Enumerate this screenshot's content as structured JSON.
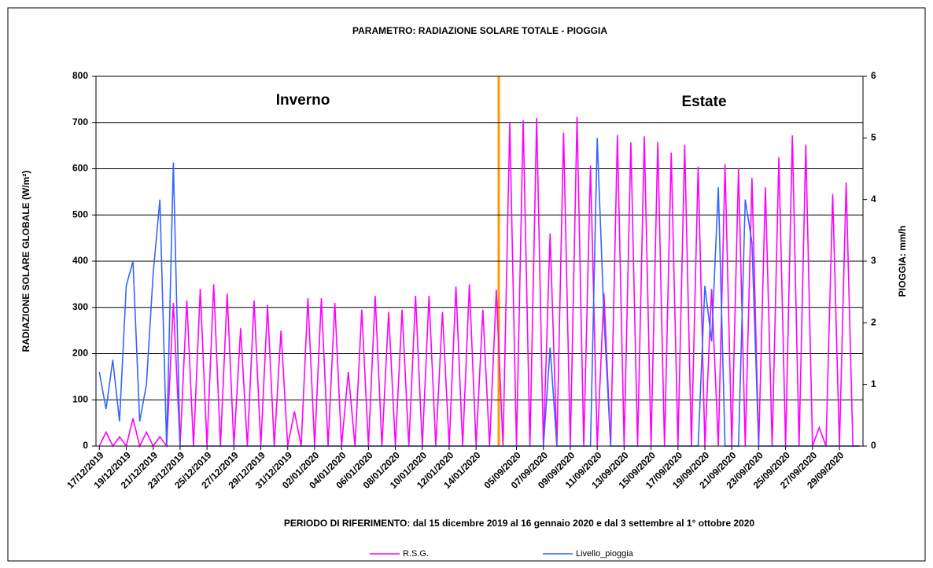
{
  "chart_data": {
    "type": "line",
    "title": "PARAMETRO: RADIAZIONE  SOLARE TOTALE - PIOGGIA",
    "y_label": "RADIAZIONE SOLARE GLOBALE (W/m²)",
    "y2_label": "PIOGGIA: mm/h",
    "x_label": "PERIODO DI RIFERIMENTO:  dal 15 dicembre 2019 al 16 gennaio 2020 e dal 3 settembre al 1° ottobre 2020",
    "annotations": [
      {
        "text": "Inverno",
        "color": "#2e9a5a"
      },
      {
        "text": "Estate",
        "color": "#ff0000"
      }
    ],
    "categories": [
      "17/12/2019",
      null,
      null,
      null,
      "19/12/2019",
      null,
      null,
      null,
      "21/12/2019",
      null,
      null,
      null,
      "23/12/2019",
      null,
      null,
      null,
      "25/12/2019",
      null,
      null,
      null,
      "27/12/2019",
      null,
      null,
      null,
      "29/12/2019",
      null,
      null,
      null,
      "31/12/2019",
      null,
      null,
      null,
      "02/01/2020",
      null,
      null,
      null,
      "04/01/2020",
      null,
      null,
      null,
      "06/01/2020",
      null,
      null,
      null,
      "08/01/2020",
      null,
      null,
      null,
      "10/01/2020",
      null,
      null,
      null,
      "12/01/2020",
      null,
      null,
      null,
      "14/01/2020",
      null,
      null,
      null,
      null,
      null,
      "05/09/2020",
      null,
      null,
      null,
      "07/09/2020",
      null,
      null,
      null,
      "09/09/2020",
      null,
      null,
      null,
      "11/09/2020",
      null,
      null,
      null,
      "13/09/2020",
      null,
      null,
      null,
      "15/09/2020",
      null,
      null,
      null,
      "17/09/2020",
      null,
      null,
      null,
      "19/09/2020",
      null,
      null,
      null,
      "21/09/2020",
      null,
      null,
      null,
      "23/09/2020",
      null,
      null,
      null,
      "25/09/2020",
      null,
      null,
      null,
      "27/09/2020",
      null,
      null,
      null,
      "29/09/2020",
      null,
      null,
      null
    ],
    "series": [
      {
        "name": "R.S.G.",
        "color": "#ff00ff",
        "values": [
          0,
          30,
          0,
          20,
          0,
          60,
          0,
          30,
          0,
          20,
          0,
          310,
          0,
          315,
          0,
          340,
          0,
          350,
          0,
          330,
          0,
          255,
          0,
          315,
          0,
          305,
          0,
          250,
          0,
          75,
          0,
          320,
          0,
          320,
          0,
          310,
          0,
          160,
          0,
          295,
          0,
          325,
          0,
          290,
          0,
          295,
          0,
          325,
          0,
          325,
          0,
          290,
          0,
          345,
          0,
          350,
          0,
          295,
          0,
          338,
          0,
          700,
          0,
          705,
          0,
          710,
          0,
          460,
          0,
          678,
          0,
          712,
          0,
          607,
          0,
          330,
          0,
          673,
          0,
          657,
          0,
          670,
          0,
          658,
          0,
          635,
          0,
          652,
          0,
          605,
          0,
          340,
          0,
          610,
          0,
          600,
          0,
          580,
          0,
          560,
          0,
          625,
          0,
          672,
          0,
          652,
          0,
          40,
          0,
          545,
          0,
          570,
          0,
          0
        ]
      },
      {
        "name": "Livello_pioggia",
        "color": "#3366ff",
        "axis": "y2",
        "values": [
          1.2,
          0.6,
          1.4,
          0.4,
          2.6,
          3.0,
          0.4,
          1.0,
          2.8,
          4.0,
          0,
          4.6,
          0,
          0,
          0,
          0,
          0,
          0,
          0,
          0,
          0,
          0,
          0,
          0,
          0,
          0,
          0,
          0,
          0,
          0,
          0,
          0,
          0,
          0,
          0,
          0,
          0,
          0,
          0,
          0,
          0,
          0,
          0,
          0,
          0,
          0,
          0,
          0,
          0,
          0,
          0,
          0,
          0,
          0,
          0,
          0,
          0,
          0,
          0,
          0,
          0,
          0,
          0,
          0,
          0,
          0,
          0,
          1.6,
          0,
          0,
          0,
          0,
          0,
          0,
          5.0,
          2.1,
          0,
          0,
          0,
          0,
          0,
          0,
          0,
          0,
          0,
          0,
          0,
          0,
          0,
          0,
          2.6,
          1.7,
          4.2,
          0,
          0,
          0,
          4.0,
          3.3,
          0,
          0,
          0,
          0,
          0,
          0,
          0,
          0,
          0,
          0,
          0,
          0,
          0,
          0,
          0,
          0
        ]
      }
    ],
    "ylim": [
      0,
      800
    ],
    "yticks": [
      0,
      100,
      200,
      300,
      400,
      500,
      600,
      700,
      800
    ],
    "y2lim": [
      0,
      6
    ],
    "y2ticks": [
      0,
      1,
      2,
      3,
      4,
      5,
      6
    ],
    "grid": true
  }
}
